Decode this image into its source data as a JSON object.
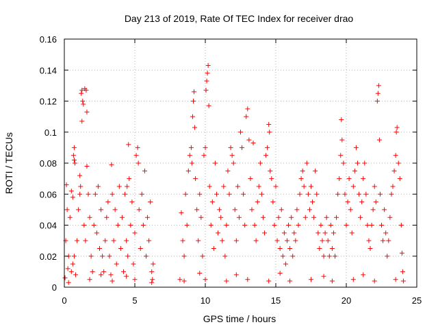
{
  "colors": {
    "series": "#ff0000",
    "grid": "#a0a0a0",
    "axis": "#000000"
  },
  "chart_data": {
    "type": "scatter",
    "marker": "plus",
    "title": "Day 213 of 2019, Rate Of TEC Index for receiver drao",
    "xlabel": "GPS time / hours",
    "ylabel": "ROTI / TECUs",
    "xlim": [
      0,
      25
    ],
    "ylim": [
      0,
      0.16
    ],
    "xticks": [
      0,
      5,
      10,
      15,
      20,
      25
    ],
    "xtick_labels": [
      "0",
      "5",
      "10",
      "15",
      "20",
      "25"
    ],
    "yticks": [
      0,
      0.02,
      0.04,
      0.06,
      0.08,
      0.1,
      0.12,
      0.14,
      0.16
    ],
    "ytick_labels": [
      "0",
      "0.02",
      "0.04",
      "0.06",
      "0.08",
      "0.1",
      "0.12",
      "0.14",
      "0.16"
    ],
    "grid": true,
    "series": [
      {
        "name": "ROTI",
        "points": [
          [
            0.05,
            0.006
          ],
          [
            0.1,
            0.03
          ],
          [
            0.15,
            0.066
          ],
          [
            0.2,
            0.05
          ],
          [
            0.25,
            0.012
          ],
          [
            0.3,
            0.02
          ],
          [
            0.4,
            0.045
          ],
          [
            0.5,
            0.01
          ],
          [
            0.6,
            0.015
          ],
          [
            0.7,
            0.02
          ],
          [
            0.5,
            0.062
          ],
          [
            0.6,
            0.058
          ],
          [
            0.8,
            0.008
          ],
          [
            0.9,
            0.03
          ],
          [
            0.65,
            0.085
          ],
          [
            0.7,
            0.09
          ],
          [
            0.75,
            0.08
          ],
          [
            0.7,
            0.082
          ],
          [
            1.0,
            0.05
          ],
          [
            1.1,
            0.06
          ],
          [
            1.1,
            0.072
          ],
          [
            1.15,
            0.065
          ],
          [
            1.2,
            0.125
          ],
          [
            1.25,
            0.127
          ],
          [
            1.3,
            0.12
          ],
          [
            1.35,
            0.118
          ],
          [
            1.45,
            0.128
          ],
          [
            1.55,
            0.127
          ],
          [
            1.6,
            0.113
          ],
          [
            1.25,
            0.107
          ],
          [
            1.4,
            0.04
          ],
          [
            1.5,
            0.03
          ],
          [
            1.6,
            0.078
          ],
          [
            1.7,
            0.06
          ],
          [
            1.8,
            0.045
          ],
          [
            1.9,
            0.02
          ],
          [
            2.0,
            0.01
          ],
          [
            2.1,
            0.04
          ],
          [
            2.2,
            0.06
          ],
          [
            2.3,
            0.035
          ],
          [
            2.4,
            0.065
          ],
          [
            2.5,
            0.025
          ],
          [
            2.6,
            0.05
          ],
          [
            2.7,
            0.02
          ],
          [
            2.8,
            0.01
          ],
          [
            2.9,
            0.03
          ],
          [
            3.0,
            0.045
          ],
          [
            3.1,
            0.055
          ],
          [
            3.2,
            0.02
          ],
          [
            3.3,
            0.008
          ],
          [
            3.35,
            0.079
          ],
          [
            3.4,
            0.06
          ],
          [
            3.5,
            0.03
          ],
          [
            3.6,
            0.05
          ],
          [
            3.7,
            0.015
          ],
          [
            3.8,
            0.04
          ],
          [
            3.9,
            0.065
          ],
          [
            4.0,
            0.025
          ],
          [
            4.1,
            0.045
          ],
          [
            4.2,
            0.01
          ],
          [
            4.3,
            0.06
          ],
          [
            4.4,
            0.03
          ],
          [
            4.45,
            0.065
          ],
          [
            4.5,
            0.02
          ],
          [
            4.55,
            0.092
          ],
          [
            4.6,
            0.07
          ],
          [
            4.7,
            0.04
          ],
          [
            4.8,
            0.055
          ],
          [
            4.9,
            0.015
          ],
          [
            5.0,
            0.035
          ],
          [
            5.1,
            0.085
          ],
          [
            5.2,
            0.09
          ],
          [
            5.25,
            0.08
          ],
          [
            5.3,
            0.05
          ],
          [
            5.4,
            0.025
          ],
          [
            5.5,
            0.06
          ],
          [
            5.6,
            0.04
          ],
          [
            5.7,
            0.075
          ],
          [
            5.8,
            0.02
          ],
          [
            5.9,
            0.045
          ],
          [
            6.0,
            0.03
          ],
          [
            6.1,
            0.055
          ],
          [
            6.2,
            0.01
          ],
          [
            6.25,
            0.005
          ],
          [
            6.3,
            0.015
          ],
          [
            0.3,
            0.003
          ],
          [
            1.8,
            0.005
          ],
          [
            3.4,
            0.004
          ],
          [
            5.0,
            0.005
          ],
          [
            6.2,
            0.003
          ],
          [
            8.2,
            0.005
          ],
          [
            8.3,
            0.048
          ],
          [
            8.4,
            0.03
          ],
          [
            8.5,
            0.02
          ],
          [
            8.6,
            0.06
          ],
          [
            8.7,
            0.04
          ],
          [
            8.8,
            0.075
          ],
          [
            8.9,
            0.085
          ],
          [
            9.0,
            0.09
          ],
          [
            9.05,
            0.08
          ],
          [
            9.1,
            0.11
          ],
          [
            9.15,
            0.12
          ],
          [
            9.2,
            0.126
          ],
          [
            9.25,
            0.103
          ],
          [
            9.3,
            0.07
          ],
          [
            9.4,
            0.05
          ],
          [
            9.5,
            0.03
          ],
          [
            9.6,
            0.06
          ],
          [
            9.7,
            0.045
          ],
          [
            9.8,
            0.02
          ],
          [
            9.9,
            0.085
          ],
          [
            10.0,
            0.09
          ],
          [
            10.05,
            0.127
          ],
          [
            10.1,
            0.133
          ],
          [
            10.15,
            0.138
          ],
          [
            10.2,
            0.143
          ],
          [
            10.25,
            0.117
          ],
          [
            10.3,
            0.065
          ],
          [
            10.4,
            0.04
          ],
          [
            10.5,
            0.055
          ],
          [
            10.6,
            0.025
          ],
          [
            10.7,
            0.08
          ],
          [
            10.8,
            0.06
          ],
          [
            10.9,
            0.035
          ],
          [
            11.0,
            0.05
          ],
          [
            11.1,
            0.045
          ],
          [
            11.2,
            0.03
          ],
          [
            11.3,
            0.065
          ],
          [
            11.4,
            0.02
          ],
          [
            11.5,
            0.04
          ],
          [
            11.6,
            0.075
          ],
          [
            11.7,
            0.06
          ],
          [
            11.8,
            0.09
          ],
          [
            11.9,
            0.085
          ],
          [
            12.0,
            0.08
          ],
          [
            12.1,
            0.05
          ],
          [
            12.2,
            0.03
          ],
          [
            12.3,
            0.065
          ],
          [
            12.4,
            0.045
          ],
          [
            12.5,
            0.1
          ],
          [
            12.6,
            0.09
          ],
          [
            12.7,
            0.06
          ],
          [
            12.8,
            0.04
          ],
          [
            12.9,
            0.11
          ],
          [
            13.0,
            0.115
          ],
          [
            13.1,
            0.095
          ],
          [
            13.2,
            0.07
          ],
          [
            13.3,
            0.05
          ],
          [
            13.4,
            0.093
          ],
          [
            13.5,
            0.04
          ],
          [
            13.6,
            0.03
          ],
          [
            13.7,
            0.055
          ],
          [
            13.8,
            0.065
          ],
          [
            13.9,
            0.08
          ],
          [
            14.0,
            0.06
          ],
          [
            14.1,
            0.045
          ],
          [
            14.2,
            0.035
          ],
          [
            14.3,
            0.085
          ],
          [
            14.4,
            0.09
          ],
          [
            14.5,
            0.105
          ],
          [
            14.55,
            0.1
          ],
          [
            14.6,
            0.075
          ],
          [
            14.7,
            0.07
          ],
          [
            14.8,
            0.055
          ],
          [
            14.9,
            0.04
          ],
          [
            15.0,
            0.065
          ],
          [
            15.1,
            0.03
          ],
          [
            15.2,
            0.045
          ],
          [
            15.3,
            0.025
          ],
          [
            15.4,
            0.05
          ],
          [
            15.5,
            0.02
          ],
          [
            15.6,
            0.035
          ],
          [
            15.7,
            0.015
          ],
          [
            15.8,
            0.03
          ],
          [
            15.9,
            0.04
          ],
          [
            16.0,
            0.025
          ],
          [
            16.1,
            0.045
          ],
          [
            16.2,
            0.02
          ],
          [
            16.3,
            0.035
          ],
          [
            16.4,
            0.03
          ],
          [
            16.5,
            0.05
          ],
          [
            16.6,
            0.04
          ],
          [
            16.7,
            0.06
          ],
          [
            16.8,
            0.07
          ],
          [
            16.9,
            0.075
          ],
          [
            17.0,
            0.065
          ],
          [
            17.1,
            0.045
          ],
          [
            17.2,
            0.08
          ],
          [
            17.3,
            0.06
          ],
          [
            17.4,
            0.05
          ],
          [
            17.5,
            0.065
          ],
          [
            17.6,
            0.055
          ],
          [
            17.7,
            0.045
          ],
          [
            17.8,
            0.075
          ],
          [
            17.9,
            0.06
          ],
          [
            18.0,
            0.035
          ],
          [
            18.1,
            0.025
          ],
          [
            18.2,
            0.04
          ],
          [
            18.3,
            0.03
          ],
          [
            18.4,
            0.02
          ],
          [
            18.5,
            0.035
          ],
          [
            18.6,
            0.045
          ],
          [
            18.7,
            0.03
          ],
          [
            18.8,
            0.02
          ],
          [
            18.9,
            0.04
          ],
          [
            19.0,
            0.025
          ],
          [
            19.1,
            0.035
          ],
          [
            19.2,
            0.02
          ],
          [
            19.3,
            0.045
          ],
          [
            19.4,
            0.06
          ],
          [
            19.5,
            0.07
          ],
          [
            19.6,
            0.085
          ],
          [
            19.65,
            0.108
          ],
          [
            19.7,
            0.095
          ],
          [
            19.8,
            0.08
          ],
          [
            19.9,
            0.06
          ],
          [
            20.0,
            0.04
          ],
          [
            20.1,
            0.055
          ],
          [
            20.2,
            0.07
          ],
          [
            20.3,
            0.05
          ],
          [
            20.4,
            0.035
          ],
          [
            20.5,
            0.065
          ],
          [
            20.6,
            0.075
          ],
          [
            20.7,
            0.09
          ],
          [
            20.8,
            0.08
          ],
          [
            20.9,
            0.06
          ],
          [
            21.0,
            0.045
          ],
          [
            21.1,
            0.055
          ],
          [
            21.2,
            0.07
          ],
          [
            21.3,
            0.08
          ],
          [
            21.4,
            0.06
          ],
          [
            21.5,
            0.04
          ],
          [
            21.6,
            0.03
          ],
          [
            21.7,
            0.025
          ],
          [
            21.8,
            0.04
          ],
          [
            21.9,
            0.05
          ],
          [
            22.0,
            0.065
          ],
          [
            22.1,
            0.055
          ],
          [
            22.2,
            0.12
          ],
          [
            22.25,
            0.125
          ],
          [
            22.3,
            0.13
          ],
          [
            22.35,
            0.095
          ],
          [
            22.4,
            0.06
          ],
          [
            22.5,
            0.04
          ],
          [
            22.6,
            0.03
          ],
          [
            22.7,
            0.05
          ],
          [
            22.8,
            0.035
          ],
          [
            22.9,
            0.02
          ],
          [
            23.0,
            0.03
          ],
          [
            23.1,
            0.045
          ],
          [
            23.2,
            0.06
          ],
          [
            23.3,
            0.065
          ],
          [
            23.4,
            0.075
          ],
          [
            23.5,
            0.085
          ],
          [
            23.55,
            0.1
          ],
          [
            23.6,
            0.103
          ],
          [
            23.7,
            0.08
          ],
          [
            23.8,
            0.07
          ],
          [
            23.9,
            0.04
          ],
          [
            23.95,
            0.022
          ],
          [
            24.0,
            0.01
          ],
          [
            24.05,
            0.004
          ],
          [
            8.5,
            0.004
          ],
          [
            10.0,
            0.005
          ],
          [
            11.5,
            0.004
          ],
          [
            13.0,
            0.005
          ],
          [
            14.5,
            0.004
          ],
          [
            16.0,
            0.004
          ],
          [
            17.5,
            0.005
          ],
          [
            19.0,
            0.004
          ],
          [
            20.5,
            0.005
          ],
          [
            22.0,
            0.004
          ],
          [
            23.5,
            0.005
          ],
          [
            12.2,
            0.008
          ],
          [
            15.3,
            0.009
          ],
          [
            18.4,
            0.007
          ],
          [
            21.2,
            0.008
          ],
          [
            9.6,
            0.009
          ],
          [
            2.6,
            0.008
          ],
          [
            4.4,
            0.007
          ]
        ]
      }
    ]
  }
}
